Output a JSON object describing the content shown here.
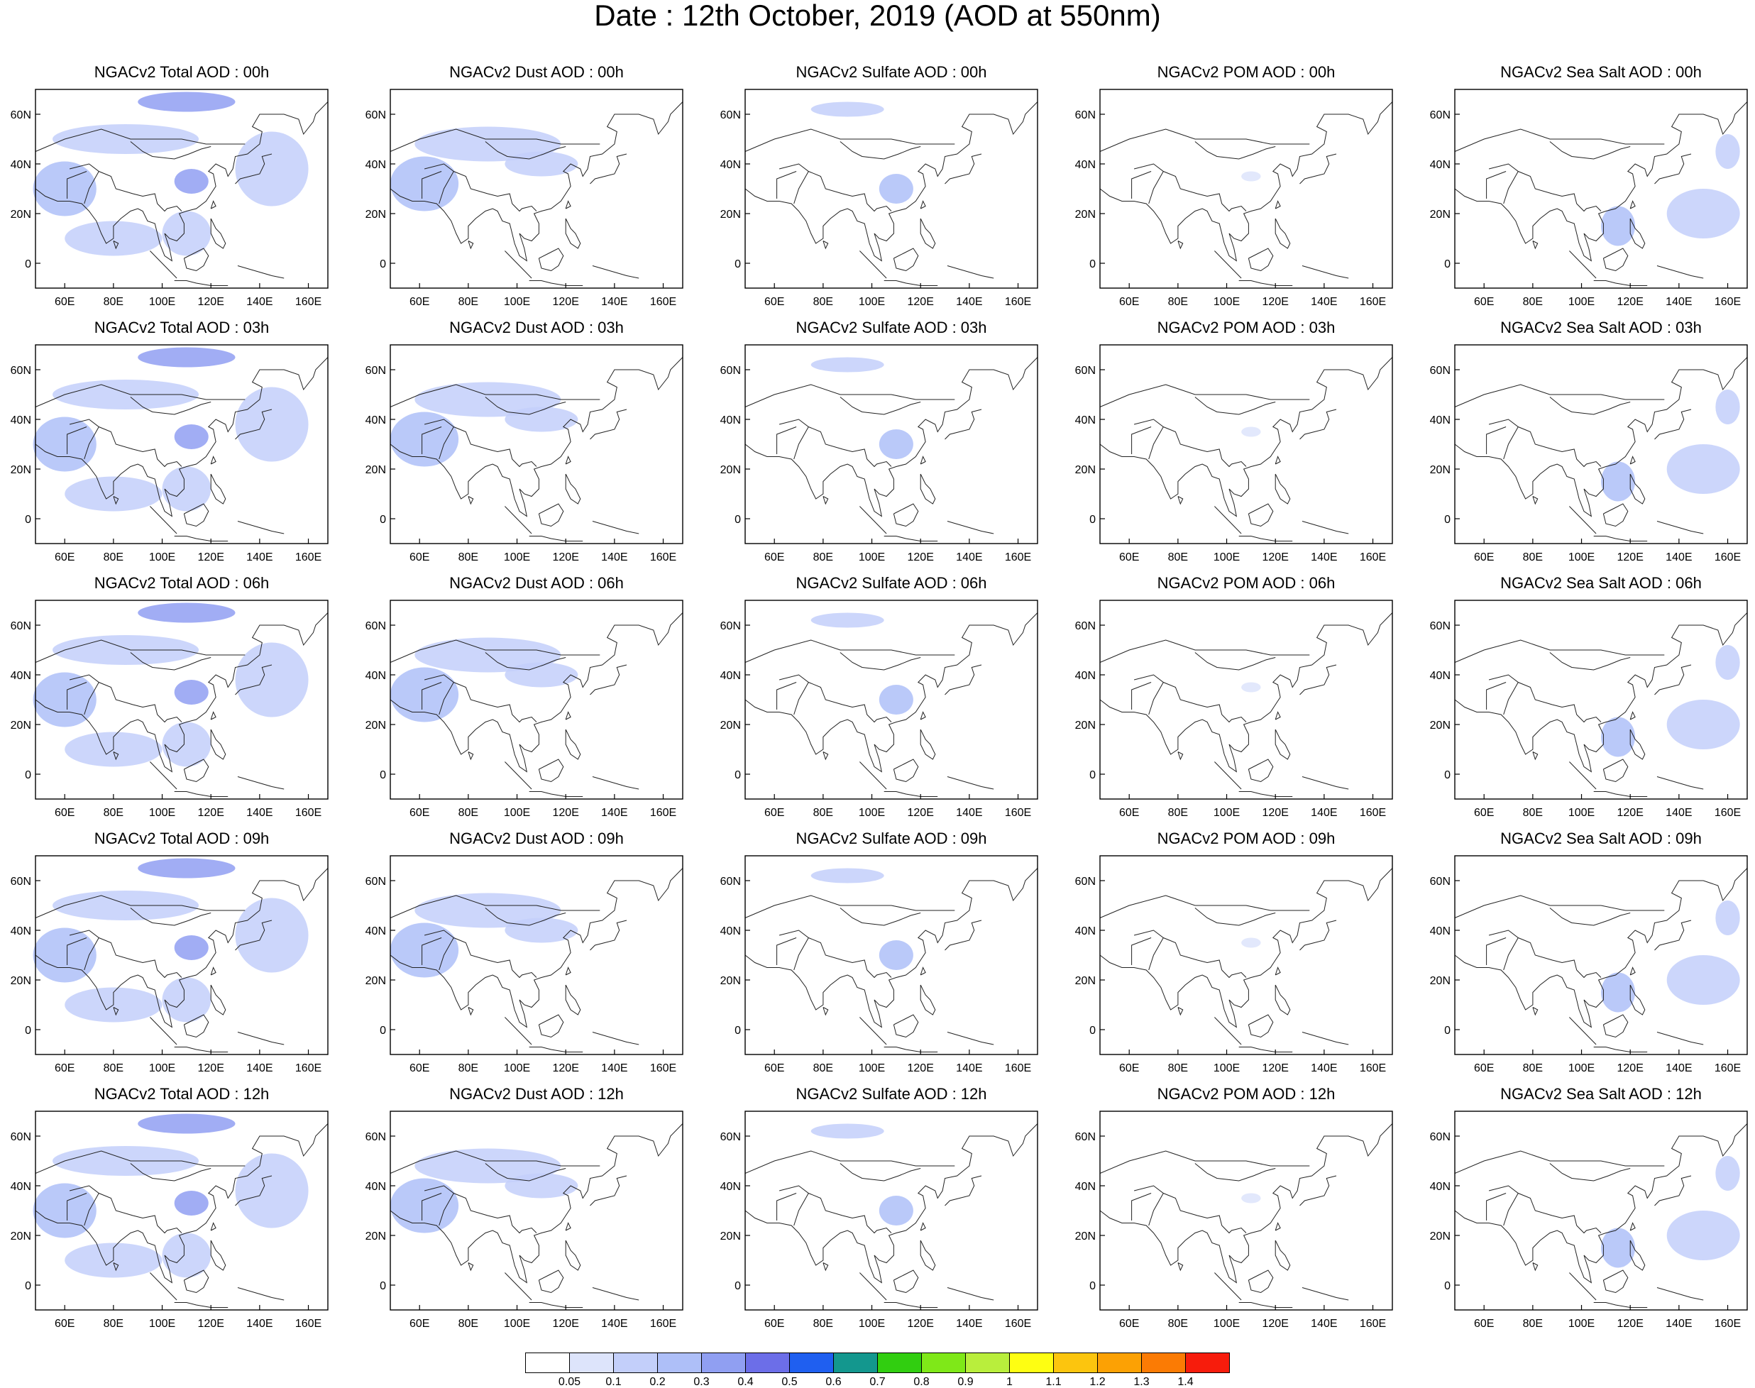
{
  "title": "Date : 12th October, 2019 (AOD at 550nm)",
  "rows": [
    "00h",
    "03h",
    "06h",
    "09h",
    "12h"
  ],
  "columns": [
    "Total",
    "Dust",
    "Sulfate",
    "POM",
    "Sea Salt"
  ],
  "panels": [
    [
      "NGACv2 Total AOD : 00h",
      "NGACv2 Dust AOD : 00h",
      "NGACv2 Sulfate AOD : 00h",
      "NGACv2 POM AOD : 00h",
      "NGACv2 Sea Salt AOD : 00h"
    ],
    [
      "NGACv2 Total AOD : 03h",
      "NGACv2 Dust AOD : 03h",
      "NGACv2 Sulfate AOD : 03h",
      "NGACv2 POM AOD : 03h",
      "NGACv2 Sea Salt AOD : 03h"
    ],
    [
      "NGACv2 Total AOD : 06h",
      "NGACv2 Dust AOD : 06h",
      "NGACv2 Sulfate AOD : 06h",
      "NGACv2 POM AOD : 06h",
      "NGACv2 Sea Salt AOD : 06h"
    ],
    [
      "NGACv2 Total AOD : 09h",
      "NGACv2 Dust AOD : 09h",
      "NGACv2 Sulfate AOD : 09h",
      "NGACv2 POM AOD : 09h",
      "NGACv2 Sea Salt  AOD : 09h"
    ],
    [
      "NGACv2 Total AOD  : 12h",
      "NGACv2 Dust AOD : 12h",
      "NGACv2 Sulfate AOD : 12h",
      "NGACv2 POM  AOD : 12h",
      "NGACv2 Sea Salt  AOD : 12h"
    ]
  ],
  "axes": {
    "lon_range": [
      48,
      168
    ],
    "lat_range": [
      -10,
      70
    ],
    "x_ticks": [
      60,
      80,
      100,
      120,
      140,
      160
    ],
    "x_tick_labels": [
      "60E",
      "80E",
      "100E",
      "120E",
      "140E",
      "160E"
    ],
    "y_ticks": [
      0,
      20,
      40,
      60
    ],
    "y_tick_labels": [
      "0",
      "20N",
      "40N",
      "60N"
    ]
  },
  "colorbar": {
    "labels": [
      "0.05",
      "0.1",
      "0.2",
      "0.3",
      "0.4",
      "0.5",
      "0.6",
      "0.7",
      "0.8",
      "0.9",
      "1",
      "1.1",
      "1.2",
      "1.3",
      "1.4"
    ],
    "colors": [
      "#ffffff",
      "#dde4fb",
      "#c3cffa",
      "#aebff8",
      "#909ff2",
      "#6c6ee8",
      "#1f5ff0",
      "#13978e",
      "#31ce10",
      "#7fe818",
      "#b9ee3c",
      "#fefe12",
      "#fcc50e",
      "#fca104",
      "#fb7b04",
      "#f71c0c"
    ]
  },
  "chart_data": {
    "type": "heatmap",
    "title": "Date : 12th October, 2019 (AOD at 550nm)",
    "xlabel": "",
    "ylabel": "",
    "x_range_lon": [
      48,
      168
    ],
    "y_range_lat": [
      -10,
      70
    ],
    "levels": [
      0.05,
      0.1,
      0.2,
      0.3,
      0.4,
      0.5,
      0.6,
      0.7,
      0.8,
      0.9,
      1,
      1.1,
      1.2,
      1.3,
      1.4
    ],
    "fields": {
      "Total": [
        {
          "lon": 60,
          "lat": 30,
          "w": 26,
          "h": 22,
          "v": 0.22
        },
        {
          "lon": 110,
          "lat": 65,
          "w": 40,
          "h": 8,
          "v": 0.35
        },
        {
          "lon": 112,
          "lat": 33,
          "w": 14,
          "h": 10,
          "v": 0.4
        },
        {
          "lon": 85,
          "lat": 50,
          "w": 60,
          "h": 12,
          "v": 0.12
        },
        {
          "lon": 145,
          "lat": 38,
          "w": 30,
          "h": 30,
          "v": 0.12
        },
        {
          "lon": 110,
          "lat": 12,
          "w": 20,
          "h": 18,
          "v": 0.18
        },
        {
          "lon": 80,
          "lat": 10,
          "w": 40,
          "h": 14,
          "v": 0.12
        }
      ],
      "Dust": [
        {
          "lon": 62,
          "lat": 32,
          "w": 28,
          "h": 22,
          "v": 0.22
        },
        {
          "lon": 88,
          "lat": 48,
          "w": 60,
          "h": 14,
          "v": 0.12
        },
        {
          "lon": 110,
          "lat": 40,
          "w": 30,
          "h": 10,
          "v": 0.12
        }
      ],
      "Sulfate": [
        {
          "lon": 110,
          "lat": 30,
          "w": 14,
          "h": 12,
          "v": 0.3
        },
        {
          "lon": 90,
          "lat": 62,
          "w": 30,
          "h": 6,
          "v": 0.12
        }
      ],
      "POM": [
        {
          "lon": 110,
          "lat": 35,
          "w": 8,
          "h": 4,
          "v": 0.07
        }
      ],
      "Sea Salt": [
        {
          "lon": 115,
          "lat": 15,
          "w": 14,
          "h": 16,
          "v": 0.22
        },
        {
          "lon": 150,
          "lat": 20,
          "w": 30,
          "h": 20,
          "v": 0.12
        },
        {
          "lon": 160,
          "lat": 45,
          "w": 10,
          "h": 14,
          "v": 0.12
        }
      ]
    }
  }
}
